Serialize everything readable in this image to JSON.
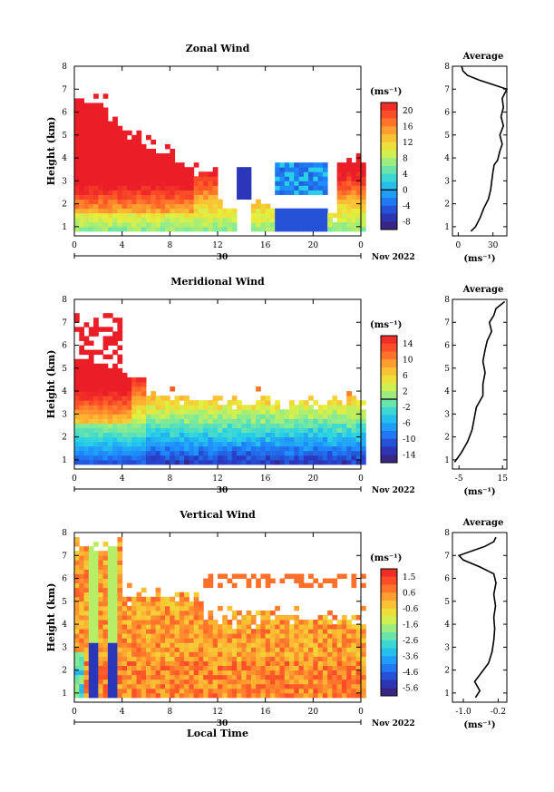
{
  "figure": {
    "x_ticks": [
      "0",
      "4",
      "8",
      "12",
      "16",
      "20",
      "0"
    ],
    "date_day": "30",
    "month_year": "Nov 2022",
    "xlabel": "Local Time",
    "ylabel": "Height (km)",
    "unit_label": "(ms⁻¹)",
    "profile_title": "Average"
  },
  "chart_data": [
    {
      "type": "heatmap",
      "title": "Zonal Wind",
      "ylabel": "Height (km)",
      "xlabel": "Local Time",
      "x_range_hours": [
        0,
        24
      ],
      "ylim": [
        0.6,
        8
      ],
      "y_ticks": [
        "1",
        "2",
        "3",
        "4",
        "5",
        "6",
        "7",
        "8"
      ],
      "colorbar": {
        "unit": "(ms⁻¹)",
        "ticks": [
          "20",
          "16",
          "12",
          "8",
          "4",
          "0",
          "-4",
          "-8"
        ],
        "range": [
          -10,
          22
        ],
        "zero_line": 0
      },
      "profile": {
        "title": "Average",
        "x_ticks": [
          "0",
          "30"
        ],
        "xlim": [
          -5,
          42
        ],
        "unit": "(ms⁻¹)",
        "points": [
          [
            11,
            0.8
          ],
          [
            15,
            1.0
          ],
          [
            19,
            1.4
          ],
          [
            22,
            1.8
          ],
          [
            26,
            2.2
          ],
          [
            28,
            2.6
          ],
          [
            29,
            3.0
          ],
          [
            30,
            3.4
          ],
          [
            31,
            3.7
          ],
          [
            34,
            3.9
          ],
          [
            36,
            4.3
          ],
          [
            38,
            4.6
          ],
          [
            36,
            5.0
          ],
          [
            39,
            5.4
          ],
          [
            37,
            5.8
          ],
          [
            39,
            6.2
          ],
          [
            38,
            6.6
          ],
          [
            42,
            7.0
          ],
          [
            30,
            7.2
          ],
          [
            18,
            7.4
          ],
          [
            8,
            7.6
          ],
          [
            4,
            7.8
          ],
          [
            3,
            8.0
          ]
        ]
      }
    },
    {
      "type": "heatmap",
      "title": "Meridional Wind",
      "ylabel": "Height (km)",
      "xlabel": "Local Time",
      "x_range_hours": [
        0,
        24
      ],
      "ylim": [
        0.6,
        8
      ],
      "y_ticks": [
        "1",
        "2",
        "3",
        "4",
        "5",
        "6",
        "7",
        "8"
      ],
      "colorbar": {
        "unit": "(ms⁻¹)",
        "ticks": [
          "14",
          "10",
          "6",
          "2",
          "-2",
          "-6",
          "-10",
          "-14"
        ],
        "range": [
          -16,
          16
        ],
        "zero_line": 0
      },
      "profile": {
        "title": "Average",
        "x_ticks": [
          "-5",
          "15"
        ],
        "xlim": [
          -8,
          17
        ],
        "unit": "(ms⁻¹)",
        "points": [
          [
            -7,
            0.9
          ],
          [
            -4,
            1.3
          ],
          [
            -1,
            1.8
          ],
          [
            1,
            2.3
          ],
          [
            2,
            2.8
          ],
          [
            3,
            3.3
          ],
          [
            6,
            3.8
          ],
          [
            6,
            4.3
          ],
          [
            7,
            4.8
          ],
          [
            6,
            5.3
          ],
          [
            7,
            5.8
          ],
          [
            8,
            6.2
          ],
          [
            10,
            6.6
          ],
          [
            9,
            7.0
          ],
          [
            11,
            7.3
          ],
          [
            12,
            7.6
          ],
          [
            16,
            7.9
          ]
        ]
      }
    },
    {
      "type": "heatmap",
      "title": "Vertical Wind",
      "ylabel": "Height (km)",
      "xlabel": "Local Time",
      "x_range_hours": [
        0,
        24
      ],
      "ylim": [
        0.6,
        8
      ],
      "y_ticks": [
        "1",
        "2",
        "3",
        "4",
        "5",
        "6",
        "7",
        "8"
      ],
      "colorbar": {
        "unit": "(ms⁻¹)",
        "ticks": [
          "1.5",
          "0.6",
          "-0.6",
          "-1.6",
          "-2.6",
          "-3.6",
          "-4.6",
          "-5.6"
        ],
        "range": [
          -6.0,
          2.0
        ],
        "zero_line": null
      },
      "profile": {
        "title": "Average",
        "x_ticks": [
          "-1.0",
          "-0.2"
        ],
        "xlim": [
          -1.25,
          0.0
        ],
        "unit": "(ms⁻¹)",
        "points": [
          [
            -0.72,
            0.8
          ],
          [
            -0.62,
            1.1
          ],
          [
            -0.74,
            1.5
          ],
          [
            -0.58,
            1.9
          ],
          [
            -0.42,
            2.3
          ],
          [
            -0.34,
            2.8
          ],
          [
            -0.3,
            3.3
          ],
          [
            -0.28,
            3.8
          ],
          [
            -0.3,
            4.3
          ],
          [
            -0.26,
            4.8
          ],
          [
            -0.3,
            5.3
          ],
          [
            -0.25,
            5.8
          ],
          [
            -0.3,
            6.2
          ],
          [
            -0.62,
            6.5
          ],
          [
            -1.0,
            6.8
          ],
          [
            -1.1,
            7.0
          ],
          [
            -0.8,
            7.2
          ],
          [
            -0.5,
            7.4
          ],
          [
            -0.3,
            7.6
          ],
          [
            -0.25,
            7.8
          ]
        ]
      }
    }
  ]
}
